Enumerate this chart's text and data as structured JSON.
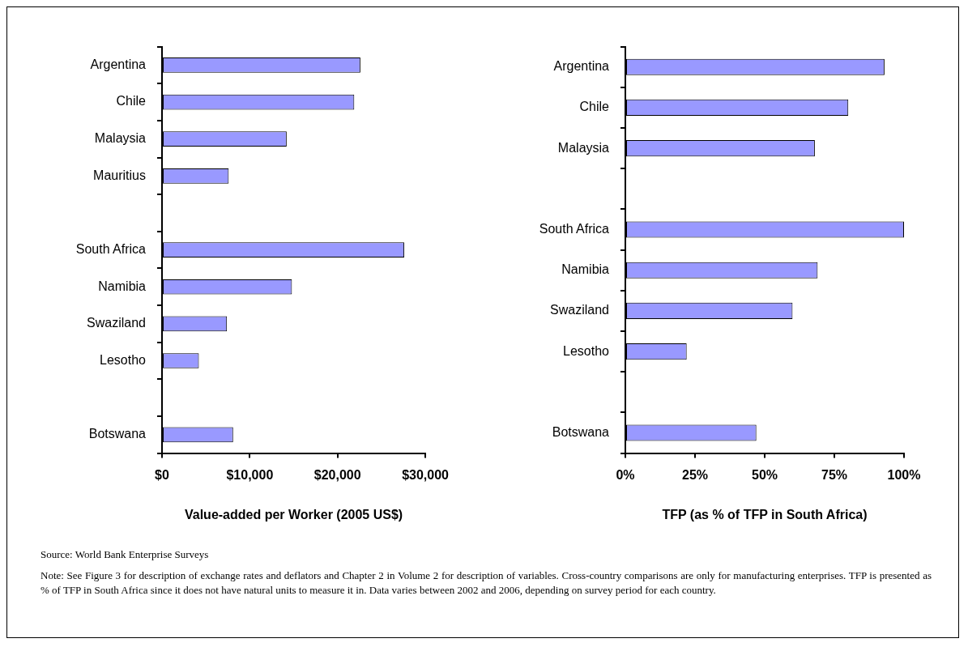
{
  "chart_data": [
    {
      "type": "bar",
      "orientation": "horizontal",
      "xlabel": "Value-added per Worker (2005 US$)",
      "categories": [
        "Argentina",
        "Chile",
        "Malaysia",
        "Mauritius",
        null,
        "South Africa",
        "Namibia",
        "Swaziland",
        "Lesotho",
        null,
        "Botswana"
      ],
      "series": [
        {
          "color": "#9999ff",
          "values": [
            22600,
            21900,
            14200,
            7600,
            null,
            27600,
            14800,
            7400,
            4200,
            null,
            8100
          ]
        }
      ],
      "xlim": [
        0,
        30000
      ],
      "xticks": [
        {
          "value": 0,
          "label": "$0"
        },
        {
          "value": 10000,
          "label": "$10,000"
        },
        {
          "value": 20000,
          "label": "$20,000"
        },
        {
          "value": 30000,
          "label": "$30,000"
        }
      ],
      "grid": false,
      "legend": false,
      "annotations": [
        "Source: World Bank Enterprise Surveys",
        "Note:  See Figure 3 for description of exchange rates and deflators and Chapter 2 in Volume 2 for description of variables.  Cross-country comparisons are only for manufacturing enterprises.  TFP is presented as % of TFP in South Africa since it does not have natural units to measure it in.  Data varies between 2002 and 2006, depending on survey period for each country."
      ]
    },
    {
      "type": "bar",
      "orientation": "horizontal",
      "xlabel": "TFP (as % of TFP in South Africa)",
      "categories": [
        "Argentina",
        "Chile",
        "Malaysia",
        null,
        "South Africa",
        "Namibia",
        "Swaziland",
        "Lesotho",
        null,
        "Botswana"
      ],
      "series": [
        {
          "color": "#9999ff",
          "values": [
            93,
            80,
            68,
            null,
            100,
            69,
            60,
            22,
            null,
            47
          ]
        }
      ],
      "xlim": [
        0,
        100
      ],
      "xticks": [
        {
          "value": 0,
          "label": "0%"
        },
        {
          "value": 25,
          "label": "25%"
        },
        {
          "value": 50,
          "label": "50%"
        },
        {
          "value": 75,
          "label": "75%"
        },
        {
          "value": 100,
          "label": "100%"
        }
      ],
      "grid": false,
      "legend": false
    }
  ]
}
